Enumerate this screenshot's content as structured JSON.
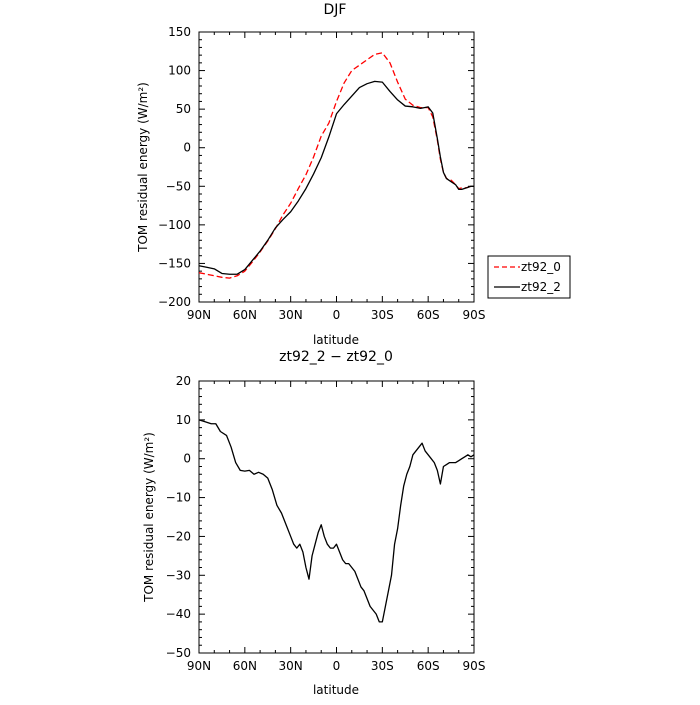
{
  "chart_data": [
    {
      "type": "line",
      "title": "DJF",
      "xlabel": "latitude",
      "ylabel": "TOM residual energy (W/m²)",
      "x_tick_labels": [
        "90N",
        "60N",
        "30N",
        "0",
        "30S",
        "60S",
        "90S"
      ],
      "x_tick_values": [
        -90,
        -60,
        -30,
        0,
        30,
        60,
        90
      ],
      "xlim": [
        -90,
        90
      ],
      "ylim": [
        -200,
        150
      ],
      "y_tick_values": [
        -200,
        -150,
        -100,
        -50,
        0,
        50,
        100,
        150
      ],
      "y_tick_labels": [
        "−200",
        "−150",
        "−100",
        "−50",
        "0",
        "50",
        "100",
        "150"
      ],
      "grid": false,
      "legend_position": "outside-right",
      "series": [
        {
          "name": "zt92_0",
          "color": "#ff0000",
          "dash": "dashed",
          "x": [
            -90,
            -85,
            -80,
            -75,
            -70,
            -65,
            -60,
            -55,
            -50,
            -45,
            -40,
            -35,
            -30,
            -25,
            -20,
            -15,
            -10,
            -5,
            0,
            5,
            10,
            15,
            20,
            25,
            30,
            35,
            40,
            45,
            50,
            55,
            60,
            63,
            66,
            68,
            70,
            72,
            75,
            78,
            80,
            82,
            85,
            88,
            90
          ],
          "y": [
            -162,
            -164,
            -166,
            -168,
            -169,
            -166,
            -160,
            -148,
            -135,
            -121,
            -105,
            -87,
            -72,
            -53,
            -35,
            -12,
            15,
            32,
            60,
            84,
            100,
            107,
            114,
            121,
            123,
            110,
            85,
            63,
            55,
            52,
            52,
            40,
            10,
            -15,
            -32,
            -40,
            -42,
            -48,
            -53,
            -52,
            -52,
            -50,
            -50
          ]
        },
        {
          "name": "zt92_2",
          "color": "#000000",
          "dash": "solid",
          "x": [
            -90,
            -85,
            -80,
            -75,
            -70,
            -65,
            -60,
            -55,
            -50,
            -45,
            -40,
            -35,
            -30,
            -25,
            -20,
            -15,
            -10,
            -5,
            0,
            5,
            10,
            15,
            20,
            25,
            30,
            35,
            40,
            45,
            50,
            55,
            60,
            63,
            66,
            68,
            70,
            72,
            75,
            78,
            80,
            82,
            85,
            88,
            90
          ],
          "y": [
            -153,
            -155,
            -157,
            -163,
            -164,
            -164,
            -158,
            -146,
            -134,
            -120,
            -104,
            -93,
            -83,
            -69,
            -53,
            -34,
            -13,
            14,
            44,
            56,
            67,
            78,
            83,
            86,
            85,
            73,
            62,
            54,
            53,
            51,
            53,
            45,
            12,
            -12,
            -32,
            -40,
            -44,
            -48,
            -54,
            -54,
            -52,
            -50,
            -50
          ]
        }
      ]
    },
    {
      "type": "line",
      "title": "zt92_2 − zt92_0",
      "xlabel": "latitude",
      "ylabel": "TOM residual energy (W/m²)",
      "x_tick_labels": [
        "90N",
        "60N",
        "30N",
        "0",
        "30S",
        "60S",
        "90S"
      ],
      "x_tick_values": [
        -90,
        -60,
        -30,
        0,
        30,
        60,
        90
      ],
      "xlim": [
        -90,
        90
      ],
      "ylim": [
        -50,
        20
      ],
      "y_tick_values": [
        -50,
        -40,
        -30,
        -20,
        -10,
        0,
        10,
        20
      ],
      "y_tick_labels": [
        "−50",
        "−40",
        "−30",
        "−20",
        "−10",
        "0",
        "10",
        "20"
      ],
      "grid": false,
      "series": [
        {
          "color": "#000000",
          "dash": "solid",
          "x": [
            -90,
            -86,
            -82,
            -79,
            -76,
            -72,
            -69,
            -66,
            -63,
            -60,
            -57,
            -54,
            -51,
            -48,
            -45,
            -42,
            -39,
            -36,
            -33,
            -30,
            -28,
            -26,
            -24,
            -22,
            -20,
            -18,
            -16,
            -14,
            -12,
            -10,
            -8,
            -6,
            -4,
            -2,
            0,
            2,
            4,
            6,
            8,
            10,
            12,
            14,
            16,
            18,
            20,
            22,
            24,
            26,
            28,
            30,
            32,
            34,
            36,
            38,
            40,
            42,
            44,
            46,
            48,
            50,
            52,
            54,
            56,
            58,
            60,
            62,
            64,
            66,
            68,
            70,
            72,
            74,
            76,
            78,
            80,
            82,
            84,
            86,
            88,
            90
          ],
          "y": [
            10,
            9.5,
            9,
            9,
            7,
            6,
            3,
            -1,
            -3,
            -3.2,
            -3,
            -4,
            -3.5,
            -4,
            -5,
            -8,
            -12,
            -14,
            -17,
            -20,
            -22,
            -23,
            -22,
            -24,
            -28,
            -31,
            -25,
            -22,
            -19,
            -17,
            -20,
            -22,
            -23,
            -23,
            -22,
            -24,
            -26,
            -27,
            -27,
            -28,
            -29,
            -31,
            -33,
            -34,
            -36,
            -38,
            -39,
            -40,
            -42,
            -42,
            -38,
            -34,
            -30,
            -22,
            -18,
            -12,
            -7,
            -4,
            -2,
            1,
            2,
            3,
            4,
            2,
            1,
            0,
            -1,
            -3,
            -6.5,
            -2,
            -1.5,
            -1,
            -1,
            -1,
            -0.5,
            0,
            0.5,
            1,
            0.5,
            1
          ]
        }
      ]
    }
  ],
  "legend": {
    "items": [
      {
        "label": "zt92_0",
        "color": "#ff0000",
        "dash": "dashed"
      },
      {
        "label": "zt92_2",
        "color": "#000000",
        "dash": "solid"
      }
    ]
  }
}
